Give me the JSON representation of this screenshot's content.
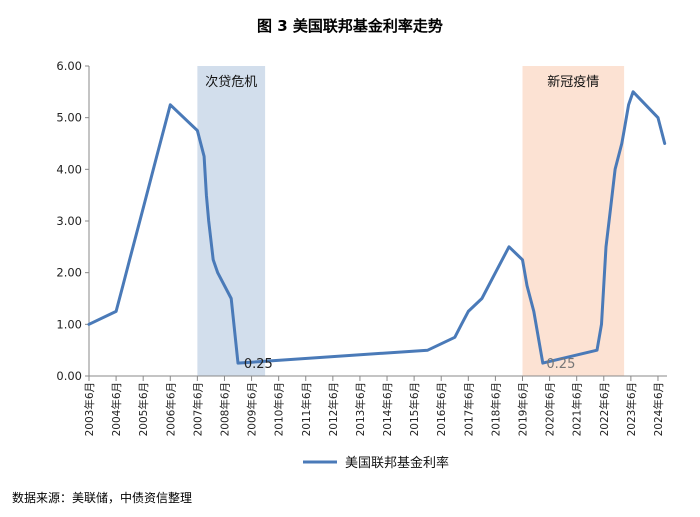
{
  "chart_data": {
    "type": "line",
    "title": "图 3 美国联邦基金利率走势",
    "source": "数据来源：美联储，中债资信整理",
    "series": [
      {
        "name": "美国联邦基金利率",
        "color": "#4a7ab8",
        "points": [
          [
            "2003-06",
            1.0
          ],
          [
            "2004-06",
            1.25
          ],
          [
            "2004-09",
            1.75
          ],
          [
            "2004-12",
            2.25
          ],
          [
            "2005-06",
            3.25
          ],
          [
            "2005-12",
            4.25
          ],
          [
            "2006-06",
            5.25
          ],
          [
            "2007-06",
            4.75
          ],
          [
            "2007-09",
            4.25
          ],
          [
            "2007-10",
            3.5
          ],
          [
            "2007-11",
            3.0
          ],
          [
            "2008-01",
            2.25
          ],
          [
            "2008-03",
            2.0
          ],
          [
            "2008-09",
            1.5
          ],
          [
            "2008-12",
            0.25
          ],
          [
            "2015-12",
            0.5
          ],
          [
            "2016-12",
            0.75
          ],
          [
            "2017-03",
            1.0
          ],
          [
            "2017-06",
            1.25
          ],
          [
            "2017-12",
            1.5
          ],
          [
            "2018-06",
            2.0
          ],
          [
            "2018-12",
            2.5
          ],
          [
            "2019-06",
            2.25
          ],
          [
            "2019-08",
            1.75
          ],
          [
            "2019-11",
            1.25
          ],
          [
            "2020-03",
            0.25
          ],
          [
            "2022-03",
            0.5
          ],
          [
            "2022-05",
            1.0
          ],
          [
            "2022-07",
            2.5
          ],
          [
            "2022-09",
            3.25
          ],
          [
            "2022-11",
            4.0
          ],
          [
            "2023-02",
            4.5
          ],
          [
            "2023-03",
            4.75
          ],
          [
            "2023-05",
            5.25
          ],
          [
            "2023-07",
            5.5
          ],
          [
            "2024-06",
            5.0
          ],
          [
            "2024-09",
            4.5
          ]
        ]
      }
    ],
    "ylim": [
      0,
      6
    ],
    "yticks": [
      "0.00",
      "1.00",
      "2.00",
      "3.00",
      "4.00",
      "5.00",
      "6.00"
    ],
    "xticks": [
      "2003年6月",
      "2004年6月",
      "2005年6月",
      "2006年6月",
      "2007年6月",
      "2008年6月",
      "2009年6月",
      "2010年6月",
      "2011年6月",
      "2012年6月",
      "2013年6月",
      "2014年6月",
      "2015年6月",
      "2016年6月",
      "2017年6月",
      "2018年6月",
      "2019年6月",
      "2020年6月",
      "2021年6月",
      "2022年6月",
      "2023年6月",
      "2024年6月"
    ],
    "shaded_regions": [
      {
        "label": "次贷危机",
        "start": "2007-06",
        "end": "2009-12",
        "color": "#d2deec"
      },
      {
        "label": "新冠疫情",
        "start": "2019-06",
        "end": "2023-03",
        "color": "#fce2d3"
      }
    ],
    "annotations": [
      {
        "text": "0.25",
        "at": "2009-09",
        "y": 0.25
      },
      {
        "text": "0.25",
        "at": "2020-11",
        "y": 0.25
      }
    ],
    "legend": "bottom",
    "grid": false
  }
}
